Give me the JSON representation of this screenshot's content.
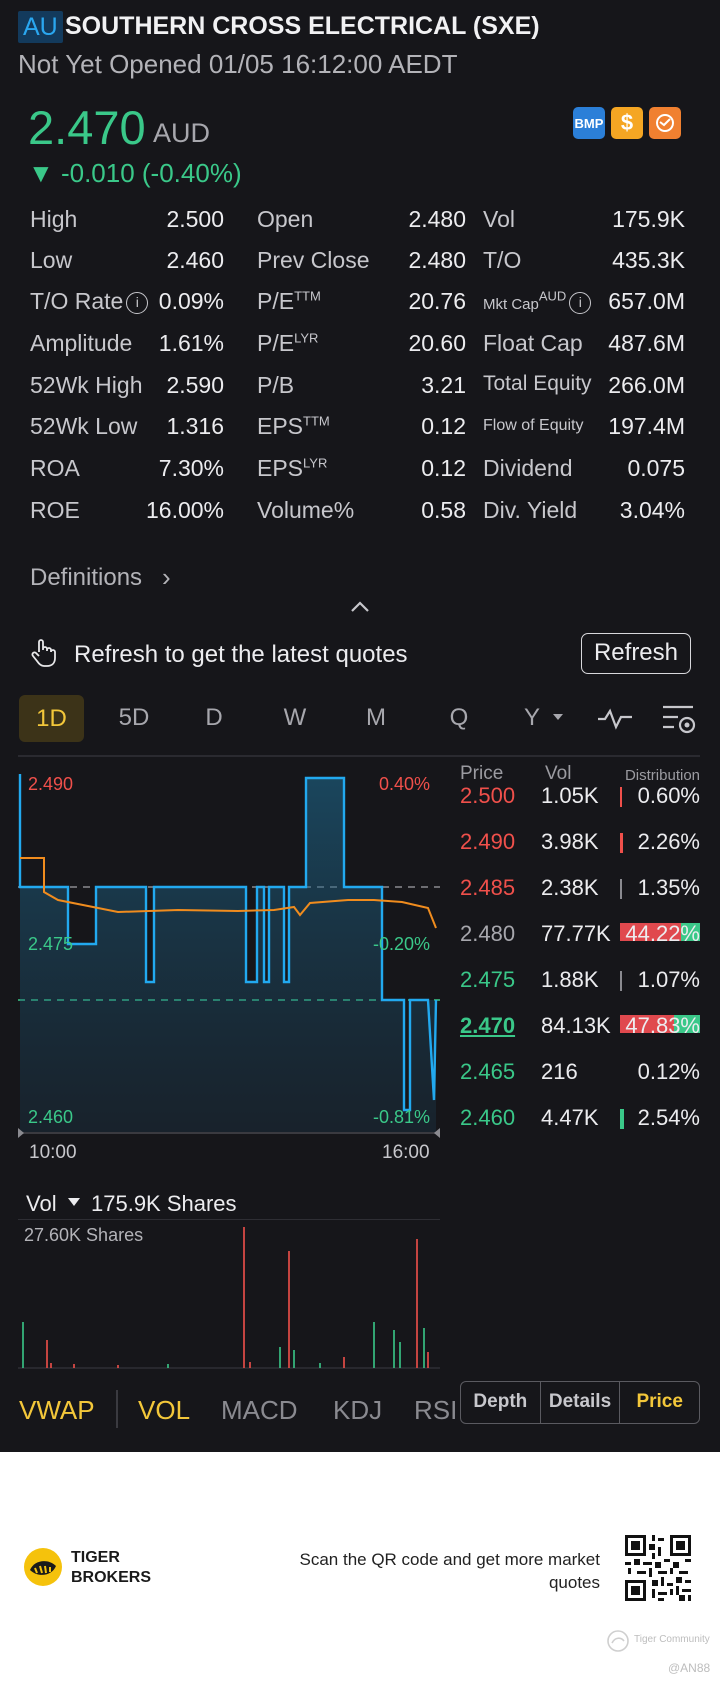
{
  "header": {
    "market": "AU",
    "title": "SOUTHERN CROSS ELECTRICAL (SXE)",
    "status": "Not Yet Opened 01/05 16:12:00 AEDT"
  },
  "quote": {
    "price": "2.470",
    "currency": "AUD",
    "change": "▼ -0.010 (-0.40%)",
    "badge_bmp": "BMP"
  },
  "stats": {
    "high_l": "High",
    "high_v": "2.500",
    "low_l": "Low",
    "low_v": "2.460",
    "torate_l": "T/O Rate",
    "torate_v": "0.09%",
    "amp_l": "Amplitude",
    "amp_v": "1.61%",
    "wkhigh_l": "52Wk High",
    "wkhigh_v": "2.590",
    "wklow_l": "52Wk Low",
    "wklow_v": "1.316",
    "roa_l": "ROA",
    "roa_v": "7.30%",
    "roe_l": "ROE",
    "roe_v": "16.00%",
    "open_l": "Open",
    "open_v": "2.480",
    "prev_l": "Prev Close",
    "prev_v": "2.480",
    "pettm_l": "P/E",
    "pettm_sup": "TTM",
    "pettm_v": "20.76",
    "pelyr_l": "P/E",
    "pelyr_sup": "LYR",
    "pelyr_v": "20.60",
    "pb_l": "P/B",
    "pb_v": "3.21",
    "epsttm_l": "EPS",
    "epsttm_sup": "TTM",
    "epsttm_v": "0.12",
    "epslyr_l": "EPS",
    "epslyr_sup": "LYR",
    "epslyr_v": "0.12",
    "volpct_l": "Volume%",
    "volpct_v": "0.58",
    "vol_l": "Vol",
    "vol_v": "175.9K",
    "to_l": "T/O",
    "to_v": "435.3K",
    "mktcap_l": "Mkt Cap",
    "mktcap_sup": "AUD",
    "mktcap_v": "657.0M",
    "float_l": "Float Cap",
    "float_v": "487.6M",
    "equity_l": "Total Equity",
    "equity_v": "266.0M",
    "flow_l": "Flow of Equity",
    "flow_v": "197.4M",
    "div_l": "Dividend",
    "div_v": "0.075",
    "yield_l": "Div. Yield",
    "yield_v": "3.04%"
  },
  "definitions": "Definitions",
  "refresh": {
    "message": "Refresh to get the latest quotes",
    "button": "Refresh"
  },
  "tabs": [
    "1D",
    "5D",
    "D",
    "W",
    "M",
    "Q",
    "Y"
  ],
  "intraday": {
    "price_top": "2.490",
    "pct_top": "0.40%",
    "price_mid": "2.475",
    "pct_mid": "-0.20%",
    "price_bot": "2.460",
    "pct_bot": "-0.81%",
    "time_start": "10:00",
    "time_end": "16:00"
  },
  "volume": {
    "label": "Vol",
    "total": "175.9K Shares",
    "max": "27.60K Shares"
  },
  "orderbook": {
    "h_price": "Price",
    "h_vol": "Vol",
    "h_dist": "Distribution",
    "rows": [
      {
        "price": "2.500",
        "vol": "1.05K",
        "pct": "0.60%"
      },
      {
        "price": "2.490",
        "vol": "3.98K",
        "pct": "2.26%"
      },
      {
        "price": "2.485",
        "vol": "2.38K",
        "pct": "1.35%"
      },
      {
        "price": "2.480",
        "vol": "77.77K",
        "pct": "44.22%"
      },
      {
        "price": "2.475",
        "vol": "1.88K",
        "pct": "1.07%"
      },
      {
        "price": "2.470",
        "vol": "84.13K",
        "pct": "47.83%"
      },
      {
        "price": "2.465",
        "vol": "216",
        "pct": "0.12%"
      },
      {
        "price": "2.460",
        "vol": "4.47K",
        "pct": "2.54%"
      }
    ]
  },
  "indicators": [
    "VWAP",
    "VOL",
    "MACD",
    "KDJ",
    "RSI"
  ],
  "segments": [
    "Depth",
    "Details",
    "Price"
  ],
  "footer": {
    "brand_line1": "TIGER",
    "brand_line2": "BROKERS",
    "scan_text": "Scan the QR code and get more market quotes",
    "community": "Tiger Community",
    "user": "@AN88"
  },
  "colors": {
    "up": "#3ac889",
    "down": "#f0504b",
    "accent": "#f3c73a",
    "line": "#22a9ef",
    "avg": "#f08c1e"
  }
}
